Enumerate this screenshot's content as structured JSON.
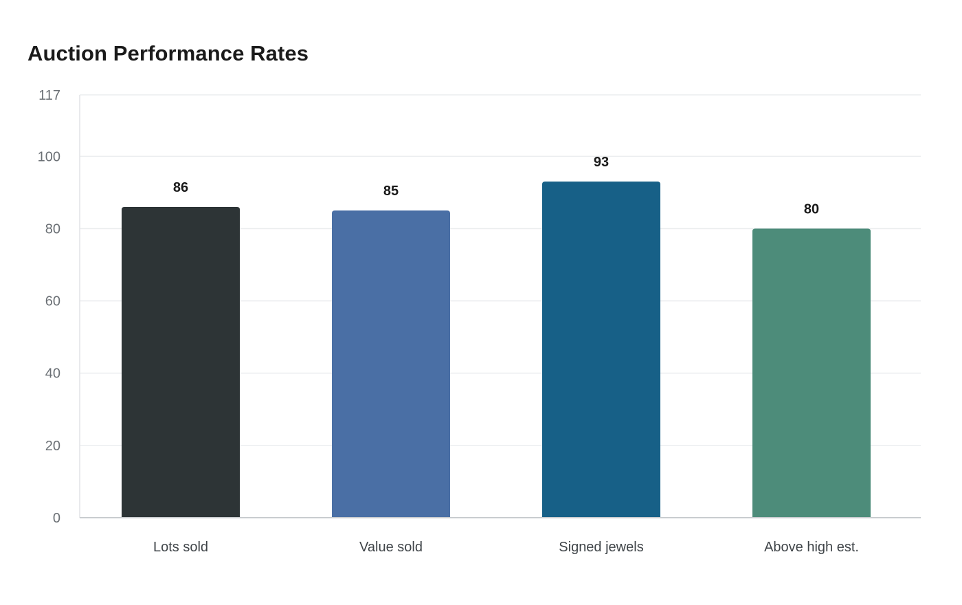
{
  "chart_data": {
    "type": "bar",
    "title": "Auction Performance Rates",
    "xlabel": "",
    "ylabel": "",
    "categories": [
      "Lots sold",
      "Value sold",
      "Signed jewels",
      "Above high est."
    ],
    "values": [
      86,
      85,
      93,
      80
    ],
    "colors": [
      "#2d3436",
      "#4a6fa5",
      "#176087",
      "#4d8c7a"
    ],
    "ylim": [
      0,
      117
    ],
    "yticks": [
      0,
      20,
      40,
      60,
      80,
      100,
      117
    ],
    "grid": true,
    "legend": "none",
    "data_labels": true
  }
}
